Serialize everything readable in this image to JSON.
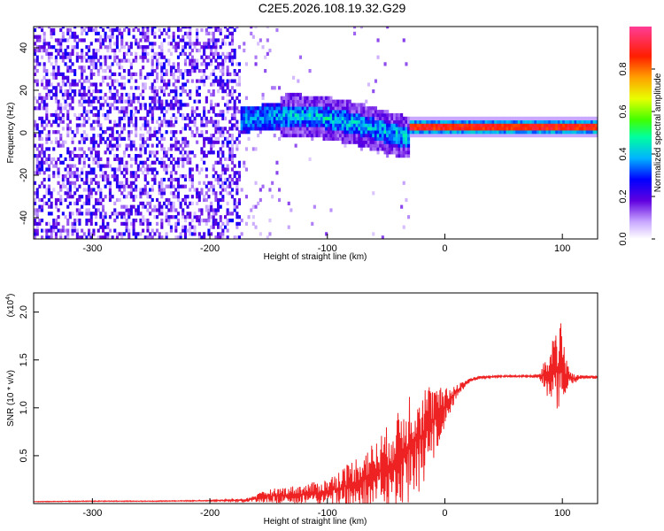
{
  "figure": {
    "title": "C2E5.2026.108.19.32.G29"
  },
  "chart_data": [
    {
      "type": "heatmap",
      "title": "C2E5.2026.108.19.32.G29",
      "xlabel": "Height of straight line (km)",
      "ylabel": "Frequency (Hz)",
      "xlim": [
        -350,
        130
      ],
      "ylim": [
        -50,
        50
      ],
      "x_ticks": [
        -300,
        -200,
        -100,
        0,
        100
      ],
      "y_ticks": [
        -40,
        -20,
        0,
        20,
        40
      ],
      "x_tick_labels": [
        "-300",
        "-200",
        "-100",
        "0",
        "100"
      ],
      "y_tick_labels": [
        "-40",
        "-20",
        "0",
        "20",
        "40"
      ],
      "colorbar": {
        "label": "Normalized spectral amplitude",
        "range": [
          0.0,
          1.0
        ],
        "ticks": [
          0.0,
          0.2,
          0.4,
          0.6,
          0.8
        ],
        "tick_labels": [
          "0.0",
          "0.2",
          "0.4",
          "0.6",
          "0.8"
        ],
        "colors": [
          "#ffffff",
          "#a070ff",
          "#5000e0",
          "#0000ff",
          "#00e0ff",
          "#00ff60",
          "#ffff00",
          "#ff8000",
          "#ff0000",
          "#ff3c96"
        ]
      },
      "regions": [
        {
          "x_range": [
            -350,
            -175
          ],
          "description_values": {
            "freq_spread": [
              -50,
              50
            ],
            "amplitude": [
              0.05,
              0.25
            ]
          }
        },
        {
          "x_range": [
            -175,
            -30
          ],
          "center_frequency": [
            5,
            8,
            3,
            -5
          ],
          "bandwidth": 10,
          "amplitude": [
            0.2,
            0.45
          ]
        },
        {
          "x_range": [
            -30,
            130
          ],
          "center_frequency": 2,
          "bandwidth": 3,
          "amplitude": [
            0.7,
            0.95
          ]
        }
      ],
      "grid": false
    },
    {
      "type": "line",
      "xlabel": "Height of straight line (km)",
      "ylabel": "SNR (10 * v/v)",
      "y_multiplier_label": "(x10",
      "y_multiplier_exp": "4",
      "xlim": [
        -350,
        130
      ],
      "ylim": [
        0,
        22000
      ],
      "x_ticks": [
        -300,
        -200,
        -100,
        0,
        100
      ],
      "y_ticks": [
        5000,
        10000,
        15000,
        20000
      ],
      "x_tick_labels": [
        "-300",
        "-200",
        "-100",
        "0",
        "100"
      ],
      "y_tick_labels": [
        "0.5",
        "1.0",
        "1.5",
        "2.0"
      ],
      "series": [
        {
          "color": "#ee2222",
          "x": [
            -350,
            -300,
            -250,
            -200,
            -170,
            -150,
            -120,
            -100,
            -80,
            -60,
            -40,
            -30,
            -20,
            -10,
            0,
            10,
            20,
            30,
            50,
            70,
            80,
            90,
            95,
            100,
            105,
            110,
            115,
            120,
            130
          ],
          "y": [
            200,
            250,
            250,
            300,
            350,
            800,
            1000,
            1200,
            2000,
            3000,
            4500,
            6000,
            7000,
            8500,
            10000,
            11800,
            12800,
            13200,
            13300,
            13300,
            13300,
            13400,
            14000,
            13800,
            13200,
            13000,
            13200,
            13200,
            13200
          ],
          "noise_amplitude": [
            30,
            40,
            40,
            60,
            150,
            700,
            1000,
            1400,
            2500,
            3500,
            5000,
            6000,
            5500,
            4000,
            2000,
            700,
            300,
            150,
            100,
            100,
            200,
            3000,
            7000,
            4500,
            1500,
            500,
            200,
            200,
            150
          ]
        }
      ],
      "grid": false
    }
  ]
}
